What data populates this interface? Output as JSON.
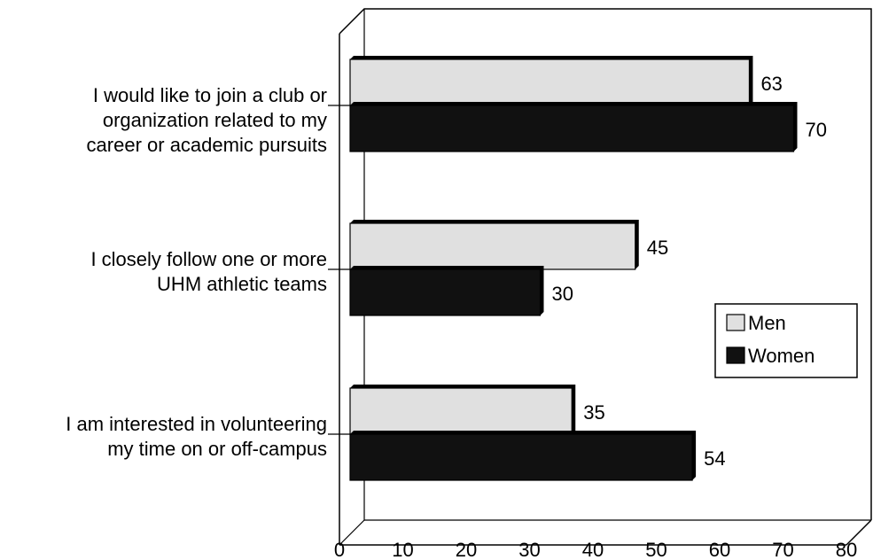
{
  "chart_data": {
    "type": "bar",
    "orientation": "horizontal",
    "style": "3d",
    "title": "",
    "xlabel": "",
    "ylabel": "",
    "categories": [
      [
        "I would like to join a club or",
        "organization related to my",
        "career or academic pursuits"
      ],
      [
        "I closely follow one or more",
        "UHM athletic teams"
      ],
      [
        "I am interested in volunteering",
        "my time on or off-campus"
      ]
    ],
    "series": [
      {
        "name": "Men",
        "values": [
          63,
          45,
          35
        ],
        "color": "#e0e0e0"
      },
      {
        "name": "Women",
        "values": [
          70,
          30,
          54
        ],
        "color": "#111111"
      }
    ],
    "xlim": [
      0,
      80
    ],
    "x_ticks": [
      "0",
      "10",
      "20",
      "30",
      "40",
      "50",
      "60",
      "70",
      "80"
    ],
    "grid": false,
    "legend_position": "right",
    "data_labels": true
  }
}
